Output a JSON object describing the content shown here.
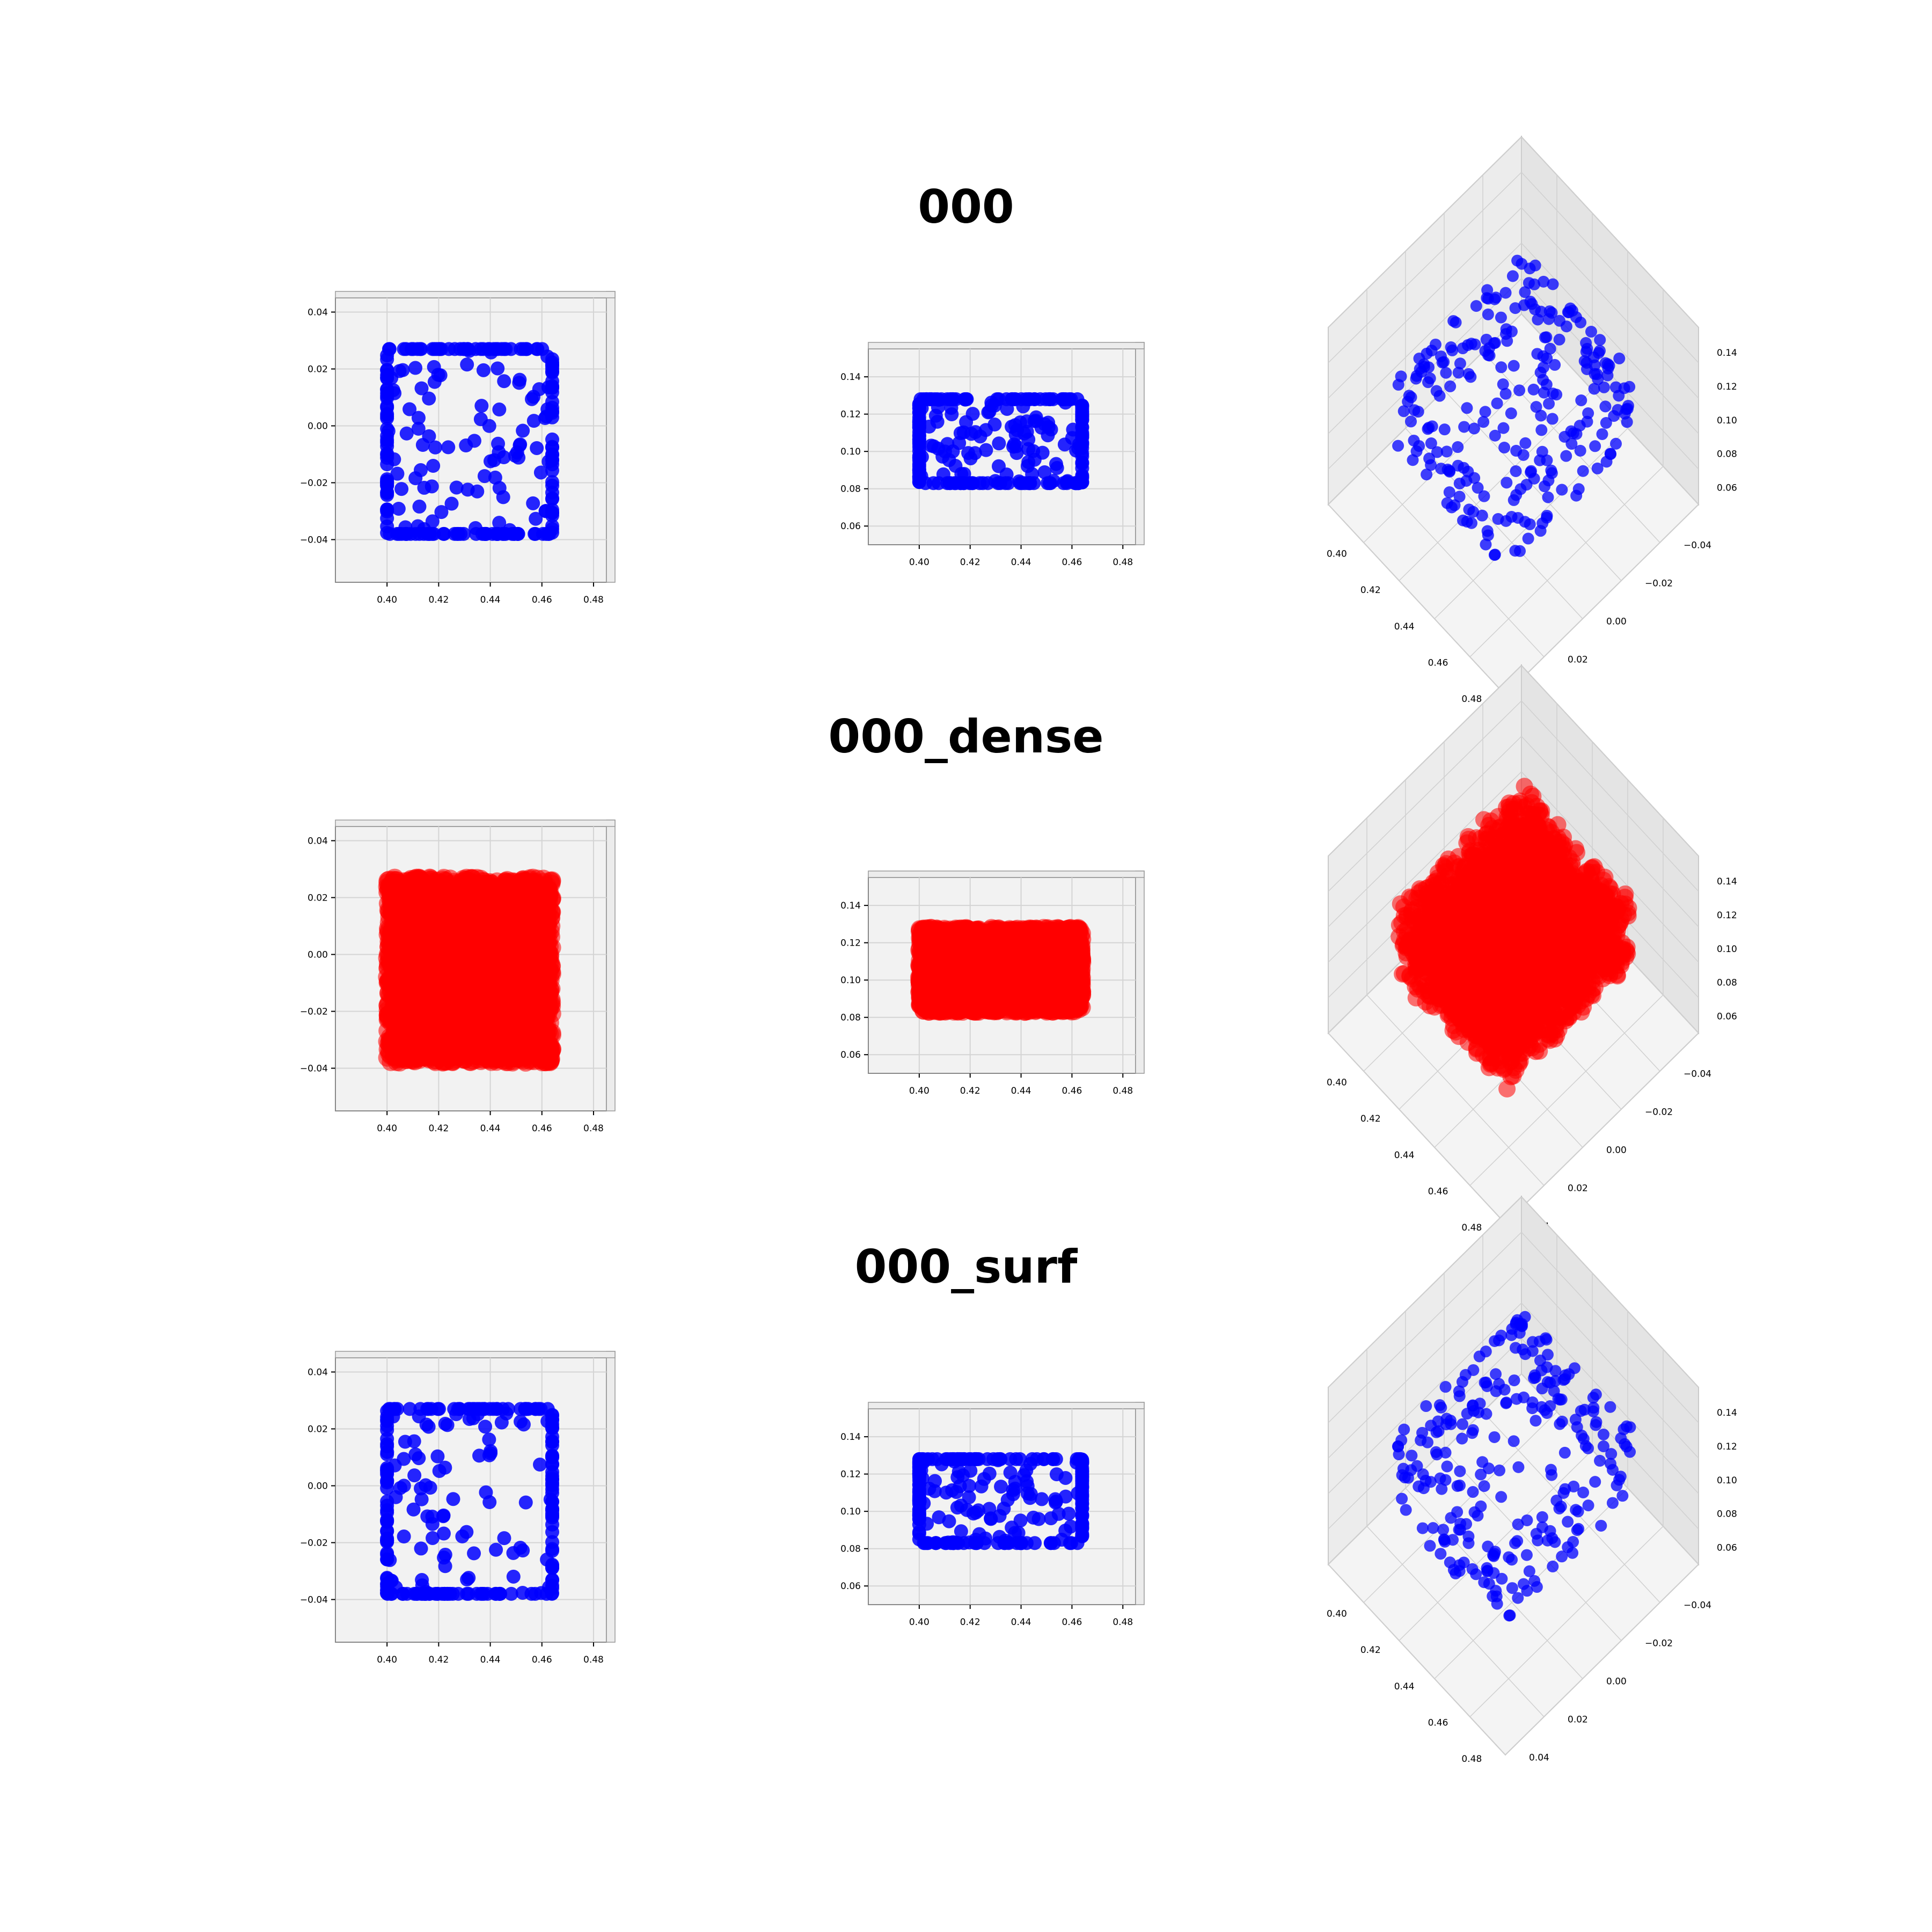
{
  "figure": {
    "rows": [
      {
        "title": "000",
        "color": "#0000ff",
        "variant": "sparse"
      },
      {
        "title": "000_dense",
        "color": "#ff0000",
        "variant": "dense"
      },
      {
        "title": "000_surf",
        "color": "#0000ff",
        "variant": "surf"
      }
    ]
  },
  "chart_data": {
    "type": "scatter",
    "grid": true,
    "panels_per_row": [
      "top view (x-y)",
      "front view (x-z)",
      "3d perspective view"
    ],
    "xlim": [
      0.38,
      0.485
    ],
    "ylim": [
      -0.055,
      0.045
    ],
    "zlim": [
      0.05,
      0.155
    ],
    "x_ticks": [
      "0.40",
      "0.42",
      "0.44",
      "0.46",
      "0.48"
    ],
    "y_ticks": [
      "0.04",
      "0.02",
      "0.00",
      "−0.02",
      "−0.04"
    ],
    "z_ticks": [
      "0.14",
      "0.12",
      "0.10",
      "0.08",
      "0.06"
    ],
    "shape": {
      "x_range": [
        0.4,
        0.464
      ],
      "y_range": [
        -0.038,
        0.027
      ],
      "z_range": [
        0.083,
        0.128
      ]
    },
    "series": [
      {
        "name": "000",
        "color": "#0000ff",
        "approx_points": 260
      },
      {
        "name": "000_dense",
        "color": "#ff0000",
        "approx_points": 4000
      },
      {
        "name": "000_surf",
        "color": "#0000ff",
        "approx_points": 260
      }
    ]
  }
}
